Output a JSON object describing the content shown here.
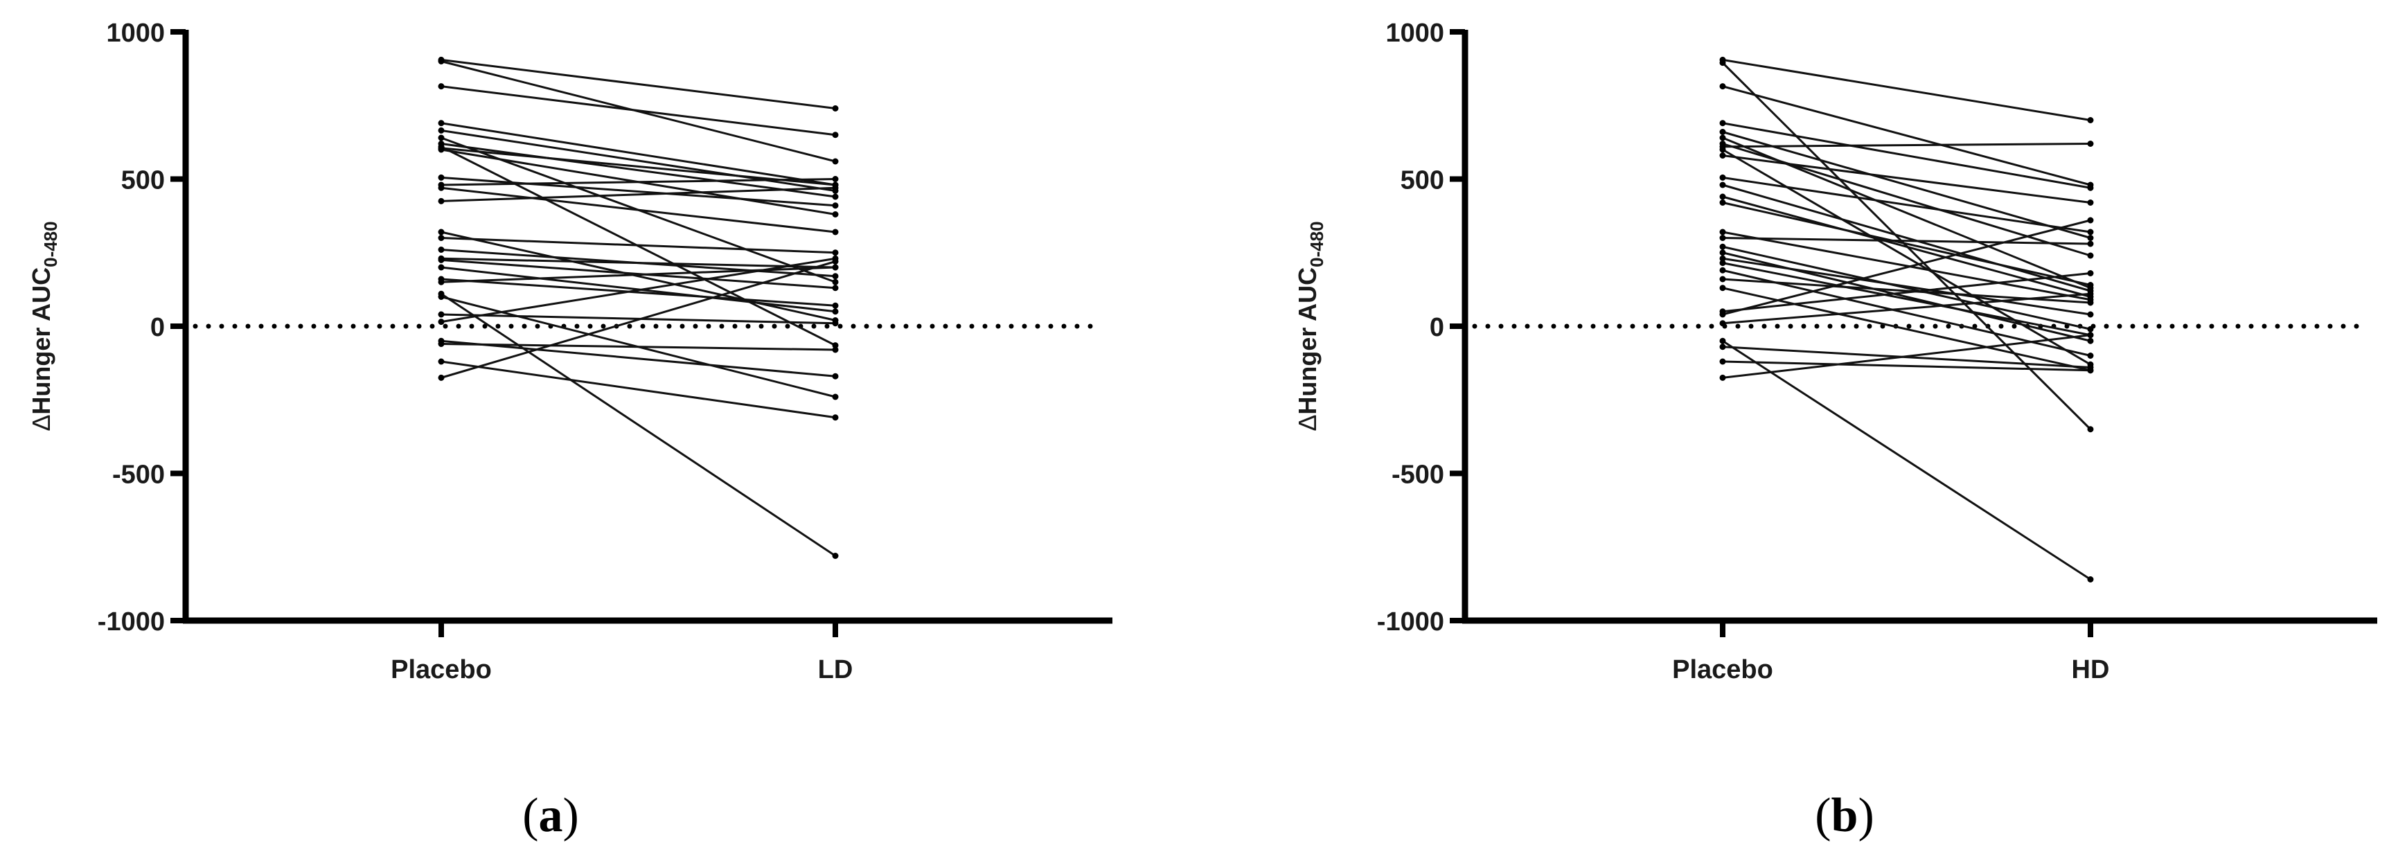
{
  "chart_data": [
    {
      "type": "line",
      "panel_label": "(a)",
      "panel_label_parts": {
        "open": "(",
        "letter": "a",
        "close": ")"
      },
      "ylabel": "ΔHunger AUC0-480",
      "ylabel_parts": {
        "delta": "Δ",
        "main": "Hunger AUC",
        "subscript": "0-480"
      },
      "categories": [
        "Placebo",
        "LD"
      ],
      "ylim": [
        -1000,
        1000
      ],
      "yticks": [
        1000,
        500,
        0,
        -500,
        -1000
      ],
      "ytick_labels": [
        "1000",
        "500",
        "0",
        "-500",
        "-1000"
      ],
      "reference_line": {
        "y": 0,
        "style": "dotted"
      },
      "pairs": [
        [
          905,
          740
        ],
        [
          900,
          560
        ],
        [
          815,
          650
        ],
        [
          690,
          480
        ],
        [
          665,
          460
        ],
        [
          640,
          150
        ],
        [
          620,
          440
        ],
        [
          610,
          -65
        ],
        [
          605,
          480
        ],
        [
          600,
          380
        ],
        [
          505,
          410
        ],
        [
          480,
          500
        ],
        [
          470,
          320
        ],
        [
          425,
          470
        ],
        [
          320,
          20
        ],
        [
          300,
          250
        ],
        [
          260,
          170
        ],
        [
          230,
          200
        ],
        [
          225,
          130
        ],
        [
          200,
          50
        ],
        [
          160,
          70
        ],
        [
          150,
          200
        ],
        [
          100,
          -240
        ],
        [
          40,
          10
        ],
        [
          15,
          230
        ],
        [
          -50,
          -170
        ],
        [
          -60,
          -80
        ],
        [
          -120,
          -310
        ],
        [
          -175,
          220
        ],
        [
          110,
          -780
        ]
      ]
    },
    {
      "type": "line",
      "panel_label": "(b)",
      "panel_label_parts": {
        "open": "(",
        "letter": "b",
        "close": ")"
      },
      "ylabel": "ΔHunger AUC0-480",
      "ylabel_parts": {
        "delta": "Δ",
        "main": "Hunger AUC",
        "subscript": "0-480"
      },
      "categories": [
        "Placebo",
        "HD"
      ],
      "ylim": [
        -1000,
        1000
      ],
      "yticks": [
        1000,
        500,
        0,
        -500,
        -1000
      ],
      "ytick_labels": [
        "1000",
        "500",
        "0",
        "-500",
        "-1000"
      ],
      "reference_line": {
        "y": 0,
        "style": "dotted"
      },
      "pairs": [
        [
          905,
          700
        ],
        [
          895,
          -350
        ],
        [
          815,
          480
        ],
        [
          690,
          470
        ],
        [
          660,
          300
        ],
        [
          640,
          130
        ],
        [
          620,
          240
        ],
        [
          610,
          620
        ],
        [
          600,
          -130
        ],
        [
          580,
          420
        ],
        [
          505,
          320
        ],
        [
          480,
          120
        ],
        [
          440,
          100
        ],
        [
          420,
          140
        ],
        [
          320,
          90
        ],
        [
          300,
          280
        ],
        [
          250,
          -50
        ],
        [
          230,
          40
        ],
        [
          215,
          -30
        ],
        [
          190,
          -100
        ],
        [
          160,
          80
        ],
        [
          130,
          -150
        ],
        [
          50,
          180
        ],
        [
          40,
          360
        ],
        [
          10,
          110
        ],
        [
          -50,
          -860
        ],
        [
          -70,
          -140
        ],
        [
          -120,
          -150
        ],
        [
          -175,
          -30
        ],
        [
          270,
          -10
        ]
      ]
    }
  ]
}
